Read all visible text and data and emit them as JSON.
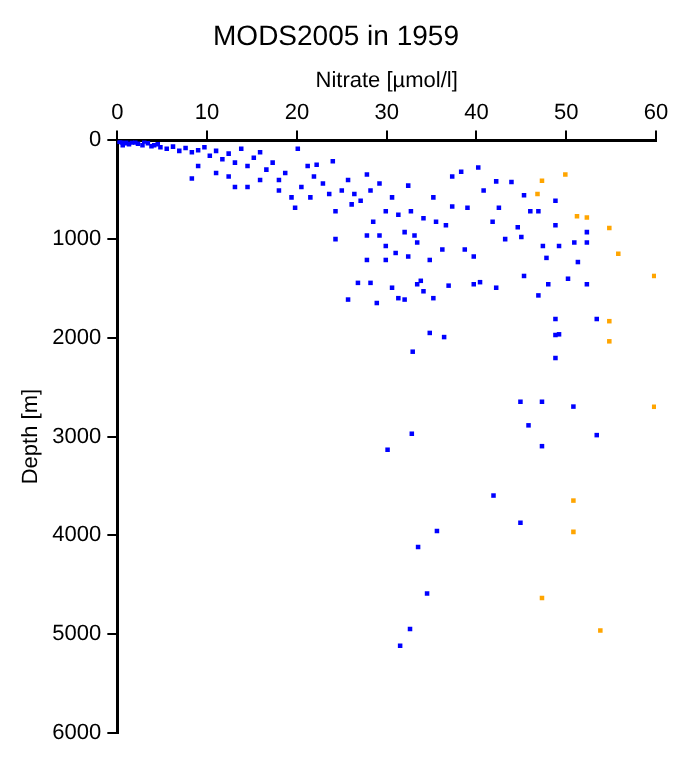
{
  "chart_data": {
    "type": "scatter",
    "title": "MODS2005 in 1959",
    "xlabel": "Nitrate [µmol/l]",
    "ylabel": "Depth [m]",
    "xlim": [
      0,
      60
    ],
    "xticks": [
      0,
      10,
      20,
      30,
      40,
      50,
      60
    ],
    "ylim": [
      6000,
      0
    ],
    "yticks": [
      0,
      1000,
      2000,
      3000,
      4000,
      5000,
      6000
    ],
    "grid": false,
    "legend": false,
    "marker": "square",
    "series": [
      {
        "color": "#0000ff",
        "x": [
          0.3,
          0.5,
          1.0,
          1.3,
          2.0,
          2.8,
          3.0,
          3.8,
          0.6,
          4.5,
          0.2,
          0.9,
          1.6,
          2.3,
          3.4,
          4.1,
          4.8,
          5.5,
          6.2,
          6.9,
          7.6,
          8.3,
          9.0,
          9.7,
          10.3,
          11.0,
          11.7,
          12.4,
          13.1,
          13.8,
          14.5,
          15.2,
          15.9,
          16.6,
          17.3,
          18.0,
          18.7,
          20.1,
          20.5,
          21.2,
          21.9,
          22.2,
          22.9,
          23.6,
          24.0,
          24.3,
          25.0,
          25.7,
          26.1,
          26.4,
          27.1,
          27.8,
          28.2,
          28.5,
          29.2,
          29.9,
          30.6,
          31.3,
          32.0,
          32.4,
          32.7,
          33.1,
          33.4,
          34.1,
          34.8,
          35.2,
          35.5,
          36.2,
          36.6,
          37.3,
          37.3,
          38.3,
          38.7,
          39.0,
          39.7,
          40.2,
          40.8,
          41.8,
          42.2,
          42.5,
          43.2,
          43.9,
          44.6,
          45.0,
          45.3,
          46.0,
          46.9,
          47.4,
          47.8,
          48.8,
          48.8,
          49.2,
          50.2,
          50.9,
          51.3,
          52.3,
          52.3,
          52.3,
          53.4,
          48.8,
          49.2,
          34.8,
          36.4,
          25.7,
          26.8,
          28.2,
          28.9,
          29.9,
          30.6,
          31.3,
          32.0,
          33.4,
          33.8,
          34.1,
          35.2,
          36.9,
          40.4,
          42.2,
          45.3,
          46.9,
          48.0,
          39.7,
          8.3,
          9.0,
          11.0,
          12.4,
          13.1,
          14.5,
          15.9,
          18.0,
          19.4,
          19.8,
          21.5,
          24.3,
          27.8,
          27.8,
          29.2,
          29.9,
          31.0,
          32.4,
          32.9,
          48.8,
          48.8,
          44.9,
          47.3,
          50.8,
          45.8,
          53.4,
          32.8,
          30.1,
          47.3,
          41.9,
          44.9,
          35.6,
          33.5,
          34.5,
          32.6,
          31.5
        ],
        "values": [
          0,
          20,
          10,
          40,
          20,
          50,
          10,
          60,
          50,
          40,
          14,
          28,
          21,
          35,
          28,
          49,
          70,
          85,
          63,
          106,
          77,
          120,
          99,
          70,
          155,
          106,
          190,
          134,
          225,
          85,
          260,
          176,
          120,
          296,
          225,
          401,
          331,
          85,
          472,
          260,
          366,
          246,
          436,
          542,
          211,
          718,
          507,
          401,
          648,
          542,
          612,
          345,
          507,
          824,
          436,
          718,
          577,
          753,
          929,
          458,
          718,
          964,
          1035,
          788,
          1211,
          577,
          824,
          1105,
          859,
          366,
          669,
          317,
          1105,
          683,
          1457,
          275,
          507,
          824,
          415,
          683,
          1000,
          422,
          880,
          979,
          556,
          718,
          718,
          1070,
          1190,
          612,
          859,
          1070,
          1401,
          1035,
          1232,
          929,
          1035,
          1457,
          1809,
          1809,
          1964,
          1950,
          1992,
          1612,
          1443,
          1443,
          1647,
          1211,
          1492,
          1598,
          1612,
          1457,
          1422,
          1528,
          1598,
          1471,
          1436,
          1492,
          1373,
          1570,
          1457,
          1176,
          387,
          260,
          331,
          366,
          472,
          472,
          401,
          507,
          577,
          683,
          577,
          1000,
          964,
          1211,
          964,
          1070,
          1140,
          1176,
          2140,
          1971,
          2204,
          2647,
          2647,
          2696,
          2886,
          2985,
          2971,
          3133,
          3097,
          3597,
          3872,
          3956,
          4118,
          4590,
          4949,
          5118
        ]
      },
      {
        "color": "#ffa500",
        "x": [
          47.3,
          49.9,
          46.8,
          51.2,
          52.3,
          54.8,
          55.8,
          59.8,
          54.8,
          54.8,
          59.8,
          50.8,
          50.8,
          47.3,
          53.8
        ],
        "values": [
          408,
          345,
          543,
          768,
          782,
          887,
          1148,
          1373,
          1831,
          2035,
          2698,
          3648,
          3965,
          4634,
          4965
        ]
      }
    ]
  }
}
